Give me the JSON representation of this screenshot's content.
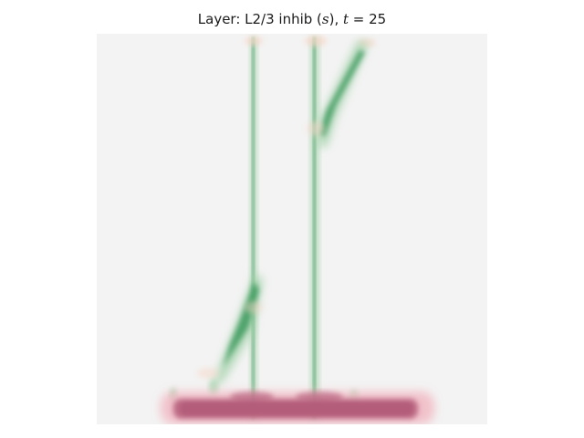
{
  "chart_data": {
    "type": "heatmap",
    "title": {
      "prefix": "Layer: L2/3 inhib (",
      "var": "s",
      "mid": "), ",
      "tvar": "t",
      "eq": " = ",
      "tval": "25"
    },
    "colormap": "diverging pink-gray-green",
    "axes_visible": false,
    "colors": {
      "background": "#f3f3f3",
      "positive": "#3e9a5e",
      "positive_light": "#9fd0a6",
      "negative": "#b25a78",
      "negative_light": "#f1b9c3",
      "halo": "#f6d7c8"
    },
    "features": [
      {
        "name": "vertical-trace-left",
        "sign": "positive",
        "strength": 0.35
      },
      {
        "name": "vertical-trace-right",
        "sign": "positive",
        "strength": 0.35
      },
      {
        "name": "upper-diagonal-streak",
        "sign": "positive",
        "strength": 0.75
      },
      {
        "name": "lower-diagonal-streak",
        "sign": "positive",
        "strength": 0.75
      },
      {
        "name": "bottom-band",
        "sign": "negative",
        "strength": 0.85
      }
    ]
  }
}
